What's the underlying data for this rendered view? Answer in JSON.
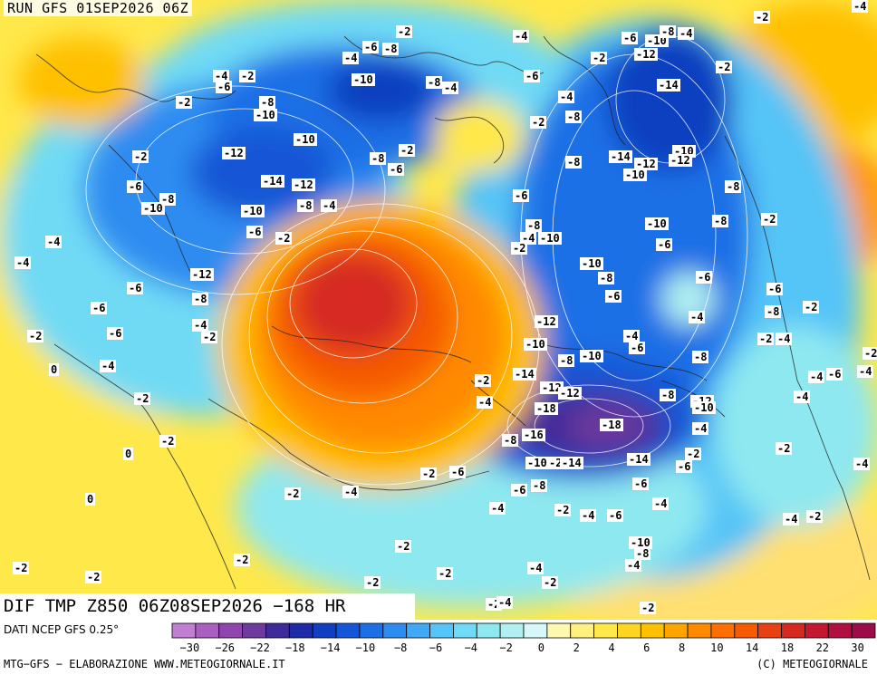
{
  "run_label": "RUN GFS 01SEP2026 06Z",
  "title": "DIF TMP Z850 06Z08SEP2026 −168 HR",
  "source": "DATI NCEP GFS 0.25°",
  "footer_left": "MTG−GFS − ELABORAZIONE WWW.METEOGIORNALE.IT",
  "footer_right": "(C) METEOGIORNALE",
  "colorbar": {
    "colors": [
      "#c07fd0",
      "#a85fbf",
      "#8f45ad",
      "#6d3a9e",
      "#3f2a99",
      "#1e2aa6",
      "#1040c0",
      "#1556d6",
      "#1e6fe6",
      "#2d8cf0",
      "#3fa9f5",
      "#55c4f7",
      "#6fdaf5",
      "#8ee8f0",
      "#b0f0f0",
      "#d6f8f8",
      "#fff8b0",
      "#fff080",
      "#ffe84a",
      "#ffd520",
      "#ffc000",
      "#ffa500",
      "#ff8a00",
      "#ff6f00",
      "#f55a00",
      "#e84010",
      "#d62a20",
      "#c41830",
      "#b01040",
      "#9c0c48"
    ],
    "tick_labels": [
      "−30",
      "−26",
      "−22",
      "−18",
      "−14",
      "−10",
      "−8",
      "−6",
      "−4",
      "−2",
      "0",
      "2",
      "4",
      "6",
      "8",
      "10",
      "14",
      "18",
      "22",
      "30"
    ]
  },
  "contour_labels": [
    "-2",
    "-4",
    "-6",
    "-8",
    "-10",
    "-12",
    "-14",
    "-16",
    "-18",
    "0"
  ]
}
